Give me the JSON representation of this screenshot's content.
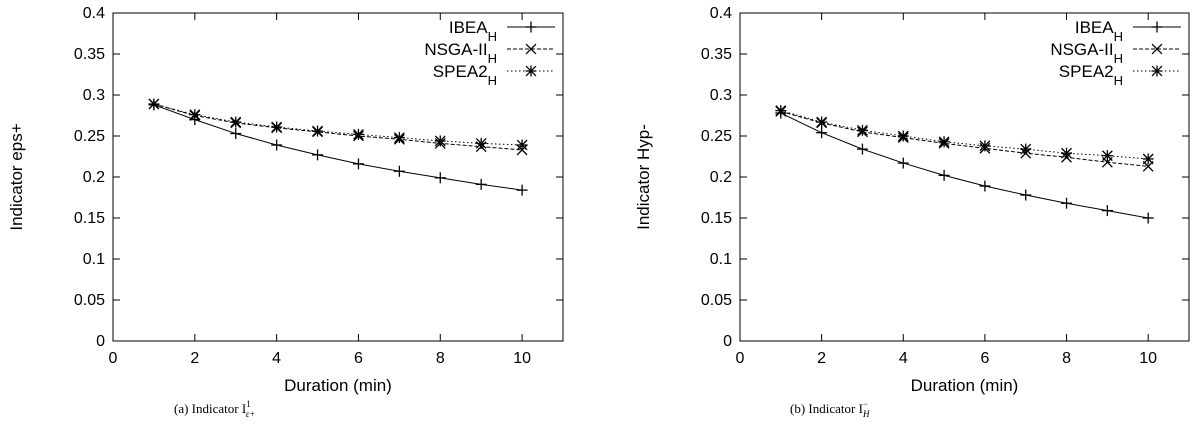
{
  "chart_data": [
    {
      "type": "line",
      "caption": {
        "prefix": "(a) Indicator I",
        "sup": "1",
        "sub": "ε+"
      },
      "xlabel": "Duration (min)",
      "ylabel": "Indicator eps+",
      "xlim": [
        0,
        11
      ],
      "ylim": [
        0,
        0.4
      ],
      "xticks": [
        0,
        2,
        4,
        6,
        8,
        10
      ],
      "yticks": [
        0,
        0.05,
        0.1,
        0.15,
        0.2,
        0.25,
        0.3,
        0.35,
        0.4
      ],
      "ytick_labels": [
        "0",
        "0.05",
        "0.1",
        "0.15",
        "0.2",
        "0.25",
        "0.3",
        "0.35",
        "0.4"
      ],
      "legend_position": "top-right",
      "grid": false,
      "x": [
        1,
        2,
        3,
        4,
        5,
        6,
        7,
        8,
        9,
        10
      ],
      "series": [
        {
          "name": "IBEA",
          "name_sub": "H",
          "line": "solid",
          "marker": "plus",
          "values": [
            0.288,
            0.27,
            0.253,
            0.239,
            0.227,
            0.216,
            0.207,
            0.199,
            0.191,
            0.184
          ]
        },
        {
          "name": "NSGA-II",
          "name_sub": "H",
          "line": "dashed",
          "marker": "cross",
          "values": [
            0.289,
            0.275,
            0.266,
            0.26,
            0.255,
            0.25,
            0.246,
            0.241,
            0.237,
            0.233
          ]
        },
        {
          "name": "SPEA2",
          "name_sub": "H",
          "line": "dotted",
          "marker": "star",
          "values": [
            0.289,
            0.276,
            0.267,
            0.261,
            0.256,
            0.252,
            0.248,
            0.244,
            0.241,
            0.239
          ]
        }
      ]
    },
    {
      "type": "line",
      "caption": {
        "prefix": "(b) Indicator I",
        "sup": "−",
        "sub": "H"
      },
      "xlabel": "Duration (min)",
      "ylabel": "Indicator Hyp-",
      "xlim": [
        0,
        11
      ],
      "ylim": [
        0,
        0.4
      ],
      "xticks": [
        0,
        2,
        4,
        6,
        8,
        10
      ],
      "yticks": [
        0,
        0.05,
        0.1,
        0.15,
        0.2,
        0.25,
        0.3,
        0.35,
        0.4
      ],
      "ytick_labels": [
        "0",
        "0.05",
        "0.1",
        "0.15",
        "0.2",
        "0.25",
        "0.3",
        "0.35",
        "0.4"
      ],
      "legend_position": "top-right",
      "grid": false,
      "x": [
        1,
        2,
        3,
        4,
        5,
        6,
        7,
        8,
        9,
        10
      ],
      "series": [
        {
          "name": "IBEA",
          "name_sub": "H",
          "line": "solid",
          "marker": "plus",
          "values": [
            0.278,
            0.254,
            0.234,
            0.217,
            0.202,
            0.189,
            0.178,
            0.168,
            0.159,
            0.15
          ]
        },
        {
          "name": "NSGA-II",
          "name_sub": "H",
          "line": "dashed",
          "marker": "cross",
          "values": [
            0.28,
            0.266,
            0.255,
            0.248,
            0.241,
            0.235,
            0.229,
            0.224,
            0.218,
            0.213
          ]
        },
        {
          "name": "SPEA2",
          "name_sub": "H",
          "line": "dotted",
          "marker": "star",
          "values": [
            0.281,
            0.267,
            0.257,
            0.25,
            0.243,
            0.238,
            0.234,
            0.229,
            0.226,
            0.222
          ]
        }
      ]
    }
  ]
}
